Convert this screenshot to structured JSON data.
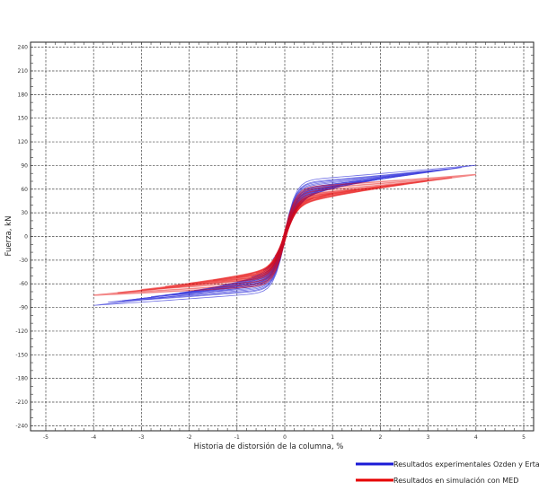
{
  "chart_data": {
    "type": "line",
    "xlabel": "Historia de distorsión de la columna, %",
    "ylabel": "Fuerza, kN",
    "xlim": [
      -5,
      5
    ],
    "ylim": [
      -243,
      243
    ],
    "x_ticks": [
      -5,
      -4,
      -3,
      -2,
      -1,
      0,
      1,
      2,
      3,
      4,
      5
    ],
    "y_ticks": [
      -240,
      -210,
      -180,
      -150,
      -120,
      -90,
      -60,
      -30,
      0,
      30,
      60,
      90,
      120,
      150,
      180,
      210,
      240
    ],
    "grid": true,
    "legend_position": "bottom-right",
    "series": [
      {
        "name": "Resultados experimentales Ozden y Ertas",
        "color": "#1a1ad6",
        "loops": [
          {
            "amp": 4.0,
            "fpos": 91,
            "fneg": -88,
            "width": 11
          },
          {
            "amp": 3.7,
            "fpos": 88,
            "fneg": -84,
            "width": 10
          },
          {
            "amp": 3.4,
            "fpos": 86,
            "fneg": -82,
            "width": 10
          },
          {
            "amp": 3.1,
            "fpos": 84,
            "fneg": -80,
            "width": 9
          },
          {
            "amp": 2.8,
            "fpos": 82,
            "fneg": -77,
            "width": 9
          },
          {
            "amp": 2.5,
            "fpos": 79,
            "fneg": -75,
            "width": 8
          },
          {
            "amp": 2.2,
            "fpos": 77,
            "fneg": -72,
            "width": 8
          },
          {
            "amp": 1.9,
            "fpos": 74,
            "fneg": -69,
            "width": 7
          },
          {
            "amp": 1.6,
            "fpos": 71,
            "fneg": -66,
            "width": 7
          },
          {
            "amp": 1.3,
            "fpos": 68,
            "fneg": -62,
            "width": 6
          },
          {
            "amp": 1.0,
            "fpos": 64,
            "fneg": -58,
            "width": 6
          },
          {
            "amp": 0.7,
            "fpos": 58,
            "fneg": -52,
            "width": 5
          },
          {
            "amp": 0.45,
            "fpos": 50,
            "fneg": -45,
            "width": 4
          },
          {
            "amp": 0.25,
            "fpos": 38,
            "fneg": -35,
            "width": 3
          }
        ]
      },
      {
        "name": "Resultados en simulación con MED",
        "color": "#e60000",
        "loops": [
          {
            "amp": 4.0,
            "fpos": 79,
            "fneg": -75,
            "width": 12
          },
          {
            "amp": 3.5,
            "fpos": 75,
            "fneg": -72,
            "width": 11
          },
          {
            "amp": 3.0,
            "fpos": 71,
            "fneg": -68,
            "width": 10
          },
          {
            "amp": 2.5,
            "fpos": 67,
            "fneg": -64,
            "width": 9
          },
          {
            "amp": 2.0,
            "fpos": 63,
            "fneg": -60,
            "width": 8
          },
          {
            "amp": 1.5,
            "fpos": 59,
            "fneg": -56,
            "width": 7
          },
          {
            "amp": 1.0,
            "fpos": 55,
            "fneg": -52,
            "width": 6
          },
          {
            "amp": 0.6,
            "fpos": 50,
            "fneg": -47,
            "width": 5
          },
          {
            "amp": 0.35,
            "fpos": 44,
            "fneg": -41,
            "width": 4
          },
          {
            "amp": 0.2,
            "fpos": 36,
            "fneg": -33,
            "width": 3
          }
        ]
      }
    ]
  }
}
